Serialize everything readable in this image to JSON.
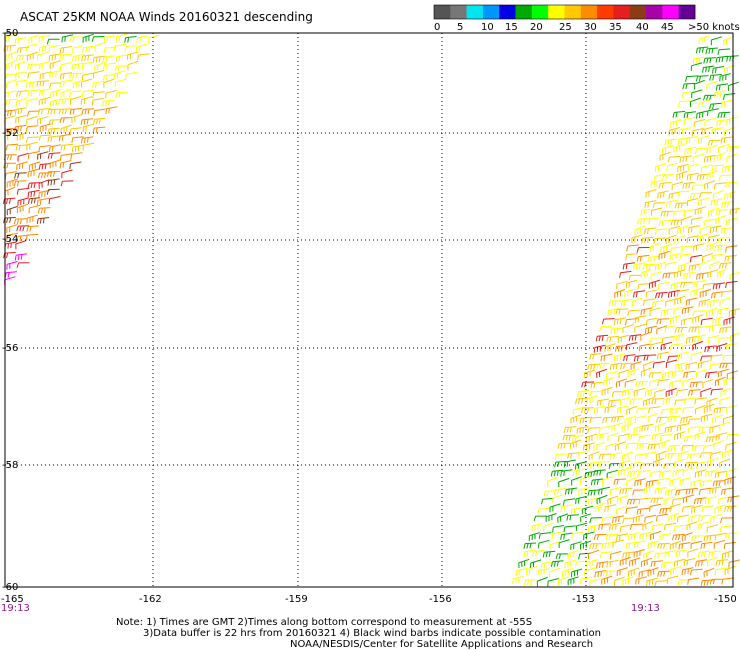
{
  "title": "ASCAT 25KM NOAA Winds 20160321 descending",
  "legend": {
    "unit_label": ">50 knots",
    "tick_labels": [
      "0",
      "5",
      "10",
      "15",
      "20",
      "25",
      "30",
      "35",
      "40",
      "45"
    ],
    "colors": [
      "#555555",
      "#777777",
      "#00e6f0",
      "#0096ff",
      "#0000e6",
      "#00aa00",
      "#00ff00",
      "#ffff00",
      "#ffc800",
      "#ff8c00",
      "#ff3c00",
      "#e61e1e",
      "#8c3c14",
      "#aa00aa",
      "#ff00ff",
      "#640096"
    ]
  },
  "lat_labels": [
    "-50",
    "-52",
    "-54",
    "-56",
    "-58",
    "-60"
  ],
  "lon_labels": [
    "-165",
    "-162",
    "-159",
    "-156",
    "-153",
    "-150"
  ],
  "time_labels": [
    "19:13",
    "19:13"
  ],
  "notes": [
    "Note: 1) Times are GMT 2)Times along bottom correspond to measurement at -55S",
    "3)Data buffer is 22 hrs from 20160321 4) Black wind barbs indicate possible contamination",
    "NOAA/NESDIS/Center for Satellite Applications and Research"
  ],
  "swaths": [
    {
      "name": "west-swath",
      "dominant_colors": [
        "#ffff00",
        "#ffc800",
        "#ff8c00",
        "#e61e1e",
        "#8c3c14",
        "#ff00ff"
      ]
    },
    {
      "name": "east-swath",
      "dominant_colors": [
        "#00aa00",
        "#ffff00",
        "#ffc800",
        "#ff8c00",
        "#e61e1e"
      ]
    }
  ]
}
